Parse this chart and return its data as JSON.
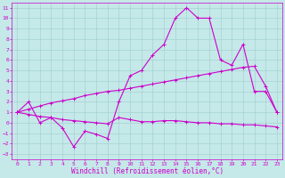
{
  "background_color": "#c5e8e8",
  "grid_color": "#9fcece",
  "line_color": "#cc00cc",
  "marker": "+",
  "marker_size": 3,
  "marker_lw": 0.7,
  "line_width": 0.8,
  "xlabel": "Windchill (Refroidissement éolien,°C)",
  "xlabel_fontsize": 5.5,
  "tick_fontsize": 4.5,
  "xlim": [
    -0.5,
    23.5
  ],
  "ylim": [
    -3.5,
    11.5
  ],
  "xticks": [
    0,
    1,
    2,
    3,
    4,
    5,
    6,
    7,
    8,
    9,
    10,
    11,
    12,
    13,
    14,
    15,
    16,
    17,
    18,
    19,
    20,
    21,
    22,
    23
  ],
  "yticks": [
    -3,
    -2,
    -1,
    0,
    1,
    2,
    3,
    4,
    5,
    6,
    7,
    8,
    9,
    10,
    11
  ],
  "series1_x": [
    0,
    1,
    2,
    3,
    4,
    5,
    6,
    7,
    8,
    9,
    10,
    11,
    12,
    13,
    14,
    15,
    16,
    17,
    18,
    19,
    20,
    21,
    22,
    23
  ],
  "series1_y": [
    1,
    2,
    0,
    0.5,
    -0.5,
    -2.3,
    -0.8,
    -1.1,
    -1.5,
    2.0,
    4.5,
    5.0,
    6.5,
    7.5,
    10.0,
    11.0,
    10.0,
    10.0,
    6.0,
    5.5,
    7.5,
    3.0,
    3.0,
    1.0
  ],
  "series2_x": [
    0,
    1,
    2,
    3,
    4,
    5,
    6,
    7,
    8,
    9,
    10,
    11,
    12,
    13,
    14,
    15,
    16,
    17,
    18,
    19,
    20,
    21,
    22,
    23
  ],
  "series2_y": [
    1.0,
    1.3,
    1.6,
    1.9,
    2.1,
    2.3,
    2.6,
    2.8,
    3.0,
    3.1,
    3.3,
    3.5,
    3.7,
    3.9,
    4.1,
    4.3,
    4.5,
    4.7,
    4.9,
    5.1,
    5.3,
    5.4,
    3.5,
    1.0
  ],
  "series3_x": [
    0,
    1,
    2,
    3,
    4,
    5,
    6,
    7,
    8,
    9,
    10,
    11,
    12,
    13,
    14,
    15,
    16,
    17,
    18,
    19,
    20,
    21,
    22,
    23
  ],
  "series3_y": [
    1.0,
    0.8,
    0.6,
    0.5,
    0.3,
    0.2,
    0.1,
    0.0,
    -0.1,
    0.5,
    0.3,
    0.1,
    0.1,
    0.2,
    0.2,
    0.1,
    0.0,
    0.0,
    -0.1,
    -0.1,
    -0.2,
    -0.2,
    -0.3,
    -0.4
  ]
}
